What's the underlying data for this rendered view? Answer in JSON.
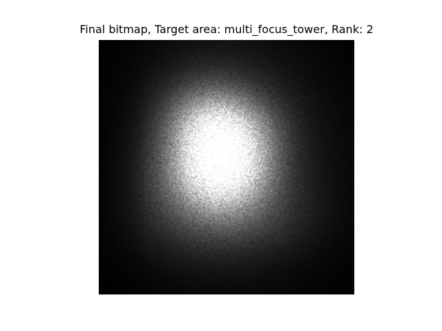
{
  "figure": {
    "title": "Final bitmap, Target area: multi_focus_tower, Rank: 2"
  },
  "chart_data": {
    "type": "heatmap",
    "title": "Final bitmap, Target area: multi_focus_tower, Rank: 2",
    "colormap": "gray",
    "axes_visible": false,
    "grid": false,
    "background": "#000000",
    "description_of_values": "grayscale intensity bitmap, 0 = black, 1 = white"
  }
}
